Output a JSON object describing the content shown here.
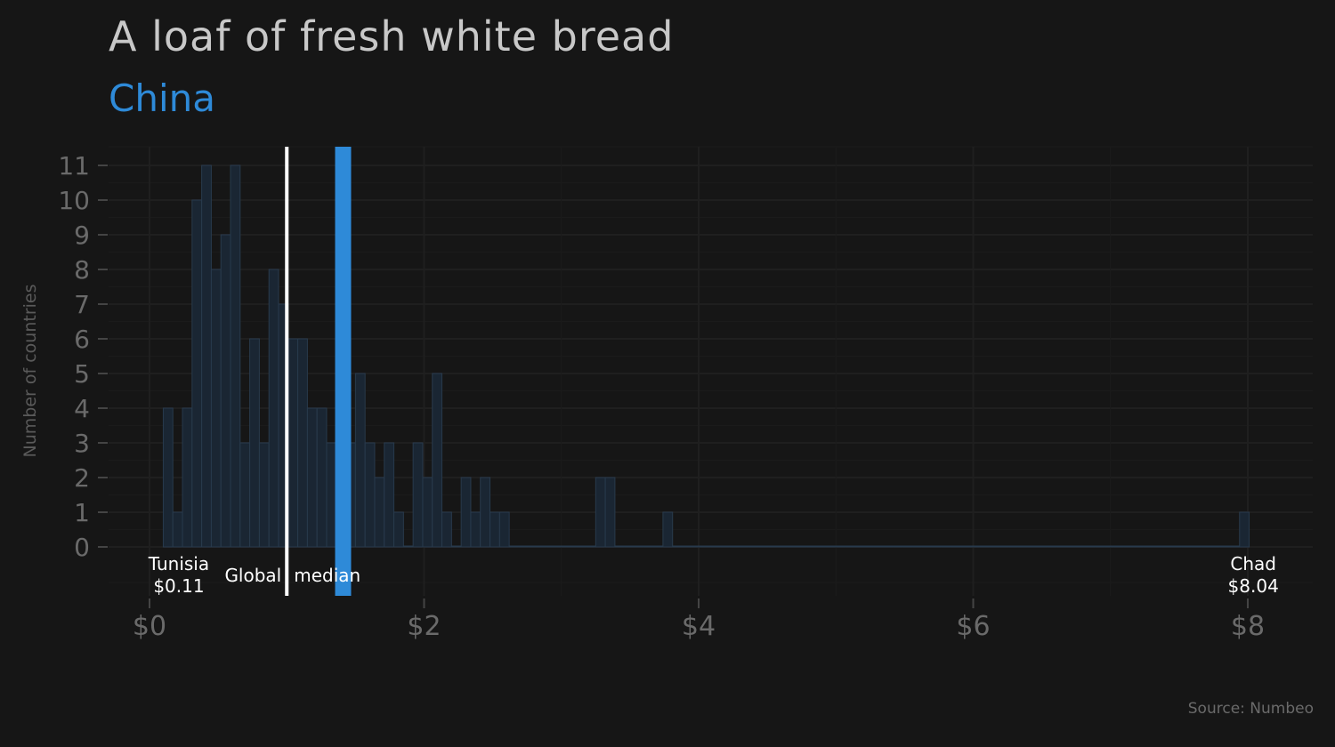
{
  "title": "A loaf of fresh white bread",
  "subtitle": "China",
  "source": "Source: Numbeo",
  "colors": {
    "background": "#161616",
    "bar": "#1a2633",
    "bar_stroke": "#283a4c",
    "highlight": "#2e8ad8",
    "median_line": "#ffffff",
    "axis_text": "#6a6a6a"
  },
  "chart_data": {
    "type": "bar",
    "title": "A loaf of fresh white bread",
    "subtitle": "China",
    "xlabel": "",
    "ylabel": "Number of countries",
    "xlim": [
      0,
      8.2
    ],
    "ylim": [
      0,
      11
    ],
    "x_ticks": [
      {
        "value": 0,
        "label": "$0"
      },
      {
        "value": 2,
        "label": "$2"
      },
      {
        "value": 4,
        "label": "$4"
      },
      {
        "value": 6,
        "label": "$6"
      },
      {
        "value": 8,
        "label": "$8"
      }
    ],
    "y_ticks": [
      0,
      1,
      2,
      3,
      4,
      5,
      6,
      7,
      8,
      9,
      10,
      11
    ],
    "bin_width": 0.07,
    "bin_start": 0.1,
    "counts": [
      4,
      1,
      4,
      10,
      11,
      8,
      9,
      11,
      3,
      6,
      3,
      8,
      7,
      6,
      6,
      4,
      4,
      3,
      8,
      3,
      5,
      3,
      2,
      3,
      1,
      0,
      3,
      2,
      5,
      1,
      0,
      2,
      1,
      2,
      1,
      1,
      0,
      0,
      0,
      0,
      0,
      0,
      0,
      0,
      0,
      2,
      2,
      0,
      0,
      0,
      0,
      0,
      1,
      0,
      0,
      0,
      0,
      0,
      0,
      0,
      0,
      0,
      0,
      0,
      0,
      0,
      0,
      0,
      0,
      0,
      0,
      0,
      0,
      0,
      0,
      0,
      0,
      0,
      0,
      0,
      0,
      0,
      0,
      0,
      0,
      0,
      0,
      0,
      0,
      0,
      0,
      0,
      0,
      0,
      0,
      0,
      0,
      0,
      0,
      0,
      0,
      0,
      0,
      0,
      0,
      0,
      0,
      0,
      0,
      0,
      0,
      0,
      1
    ],
    "global_median": {
      "value": 1.0,
      "label": "Global median"
    },
    "highlight": {
      "name": "China",
      "value": 1.41
    },
    "annotations": [
      {
        "name": "Tunisia",
        "value_label": "$0.11",
        "x": 0.11
      },
      {
        "name": "Chad",
        "value_label": "$8.04",
        "x": 8.04
      }
    ],
    "grid": true,
    "legend": "none"
  }
}
